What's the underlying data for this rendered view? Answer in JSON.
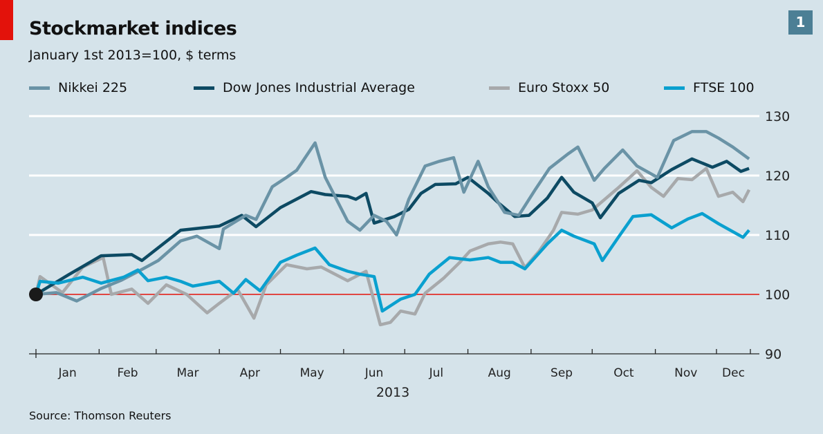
{
  "chart_data": {
    "type": "line",
    "title": "Stockmarket indices",
    "subtitle": "January 1st 2013=100, $ terms",
    "source": "Source: Thomson Reuters",
    "badge": "1",
    "xlabel": "2013",
    "x_ticks": [
      "Jan",
      "Feb",
      "Mar",
      "Apr",
      "May",
      "Jun",
      "Jul",
      "Aug",
      "Sep",
      "Oct",
      "Nov",
      "Dec"
    ],
    "y_ticks": [
      90,
      100,
      110,
      120,
      130
    ],
    "ylim": [
      90,
      130
    ],
    "y_axis_side": "right",
    "grid": true,
    "baseline": 100,
    "baseline_color": "#e3120b",
    "legend_position": "top",
    "series": [
      {
        "name": "Nikkei 225",
        "color": "#6a93a6",
        "points": [
          [
            "2013-01-01",
            100
          ],
          [
            "2013-01-11",
            100.3
          ],
          [
            "2013-01-21",
            98.9
          ],
          [
            "2013-02-02",
            101
          ],
          [
            "2013-02-12",
            102.4
          ],
          [
            "2013-02-22",
            104.2
          ],
          [
            "2013-03-02",
            105.7
          ],
          [
            "2013-03-13",
            109
          ],
          [
            "2013-03-21",
            109.8
          ],
          [
            "2013-04-01",
            107.7
          ],
          [
            "2013-04-03",
            111
          ],
          [
            "2013-04-14",
            113.3
          ],
          [
            "2013-04-19",
            112.6
          ],
          [
            "2013-04-27",
            118.1
          ],
          [
            "2013-05-04",
            119.7
          ],
          [
            "2013-05-09",
            120.9
          ],
          [
            "2013-05-18",
            125.5
          ],
          [
            "2013-05-23",
            119.7
          ],
          [
            "2013-06-03",
            112.3
          ],
          [
            "2013-06-09",
            110.8
          ],
          [
            "2013-06-16",
            113.3
          ],
          [
            "2013-06-22",
            112.3
          ],
          [
            "2013-06-27",
            110
          ],
          [
            "2013-07-03",
            116
          ],
          [
            "2013-07-11",
            121.6
          ],
          [
            "2013-07-18",
            122.4
          ],
          [
            "2013-07-25",
            123
          ],
          [
            "2013-07-30",
            117.2
          ],
          [
            "2013-08-06",
            122.4
          ],
          [
            "2013-08-11",
            118.1
          ],
          [
            "2013-08-19",
            113.8
          ],
          [
            "2013-08-26",
            113.3
          ],
          [
            "2013-09-03",
            117.6
          ],
          [
            "2013-09-10",
            121.2
          ],
          [
            "2013-09-19",
            123.6
          ],
          [
            "2013-09-24",
            124.8
          ],
          [
            "2013-10-02",
            119.2
          ],
          [
            "2013-10-07",
            121.2
          ],
          [
            "2013-10-16",
            124.3
          ],
          [
            "2013-10-23",
            121.6
          ],
          [
            "2013-11-02",
            119.7
          ],
          [
            "2013-11-10",
            125.9
          ],
          [
            "2013-11-19",
            127.4
          ],
          [
            "2013-11-26",
            127.4
          ],
          [
            "2013-12-02",
            126.3
          ],
          [
            "2013-12-09",
            124.8
          ],
          [
            "2013-12-17",
            122.8
          ]
        ]
      },
      {
        "name": "Dow Jones Industrial Average",
        "color": "#0d4a63",
        "points": [
          [
            "2013-01-01",
            100
          ],
          [
            "2013-01-17",
            103.3
          ],
          [
            "2013-02-02",
            106.5
          ],
          [
            "2013-02-17",
            106.7
          ],
          [
            "2013-02-22",
            105.7
          ],
          [
            "2013-03-13",
            110.8
          ],
          [
            "2013-04-01",
            111.5
          ],
          [
            "2013-04-12",
            113.3
          ],
          [
            "2013-04-19",
            111.4
          ],
          [
            "2013-05-01",
            114.6
          ],
          [
            "2013-05-16",
            117.3
          ],
          [
            "2013-05-23",
            116.8
          ],
          [
            "2013-06-03",
            116.5
          ],
          [
            "2013-06-07",
            116
          ],
          [
            "2013-06-12",
            117
          ],
          [
            "2013-06-16",
            112
          ],
          [
            "2013-06-26",
            113.1
          ],
          [
            "2013-07-03",
            114.3
          ],
          [
            "2013-07-09",
            117
          ],
          [
            "2013-07-16",
            118.5
          ],
          [
            "2013-07-26",
            118.6
          ],
          [
            "2013-08-01",
            119.7
          ],
          [
            "2013-08-11",
            117
          ],
          [
            "2013-08-16",
            115.4
          ],
          [
            "2013-08-24",
            113.1
          ],
          [
            "2013-08-31",
            113.3
          ],
          [
            "2013-09-09",
            116.2
          ],
          [
            "2013-09-16",
            119.7
          ],
          [
            "2013-09-22",
            117.2
          ],
          [
            "2013-10-01",
            115.4
          ],
          [
            "2013-10-05",
            112.9
          ],
          [
            "2013-10-14",
            117
          ],
          [
            "2013-10-24",
            119.2
          ],
          [
            "2013-10-30",
            118.8
          ],
          [
            "2013-11-09",
            121
          ],
          [
            "2013-11-19",
            122.8
          ],
          [
            "2013-11-29",
            121.4
          ],
          [
            "2013-12-06",
            122.4
          ],
          [
            "2013-12-13",
            120.7
          ],
          [
            "2013-12-17",
            121.2
          ]
        ]
      },
      {
        "name": "Euro Stoxx 50",
        "color": "#a7a9ab",
        "points": [
          [
            "2013-01-01",
            100
          ],
          [
            "2013-01-03",
            103
          ],
          [
            "2013-01-14",
            100.3
          ],
          [
            "2013-01-24",
            104.6
          ],
          [
            "2013-02-03",
            106.2
          ],
          [
            "2013-02-07",
            100
          ],
          [
            "2013-02-17",
            100.9
          ],
          [
            "2013-02-25",
            98.5
          ],
          [
            "2013-03-06",
            101.6
          ],
          [
            "2013-03-16",
            100
          ],
          [
            "2013-03-26",
            96.9
          ],
          [
            "2013-04-01",
            98.5
          ],
          [
            "2013-04-10",
            100.8
          ],
          [
            "2013-04-18",
            96
          ],
          [
            "2013-04-24",
            101.6
          ],
          [
            "2013-05-04",
            105
          ],
          [
            "2013-05-14",
            104.3
          ],
          [
            "2013-05-21",
            104.6
          ],
          [
            "2013-06-03",
            102.3
          ],
          [
            "2013-06-12",
            103.9
          ],
          [
            "2013-06-19",
            94.9
          ],
          [
            "2013-06-24",
            95.3
          ],
          [
            "2013-06-29",
            97.2
          ],
          [
            "2013-07-06",
            96.7
          ],
          [
            "2013-07-11",
            100.2
          ],
          [
            "2013-07-20",
            102.7
          ],
          [
            "2013-07-28",
            105.4
          ],
          [
            "2013-08-02",
            107.3
          ],
          [
            "2013-08-11",
            108.5
          ],
          [
            "2013-08-17",
            108.8
          ],
          [
            "2013-08-23",
            108.5
          ],
          [
            "2013-08-29",
            104.5
          ],
          [
            "2013-09-05",
            107.3
          ],
          [
            "2013-09-12",
            110.8
          ],
          [
            "2013-09-16",
            113.8
          ],
          [
            "2013-09-24",
            113.5
          ],
          [
            "2013-10-01",
            114.2
          ],
          [
            "2013-10-14",
            118
          ],
          [
            "2013-10-23",
            120.8
          ],
          [
            "2013-10-30",
            118
          ],
          [
            "2013-11-05",
            116.5
          ],
          [
            "2013-11-12",
            119.5
          ],
          [
            "2013-11-19",
            119.3
          ],
          [
            "2013-11-26",
            121.2
          ],
          [
            "2013-12-02",
            116.5
          ],
          [
            "2013-12-09",
            117.2
          ],
          [
            "2013-12-14",
            115.6
          ],
          [
            "2013-12-17",
            117.6
          ]
        ]
      },
      {
        "name": "FTSE 100",
        "color": "#0aa0cf",
        "points": [
          [
            "2013-01-01",
            100
          ],
          [
            "2013-01-03",
            102.2
          ],
          [
            "2013-01-12",
            101.9
          ],
          [
            "2013-01-24",
            102.9
          ],
          [
            "2013-02-02",
            101.9
          ],
          [
            "2013-02-13",
            102.9
          ],
          [
            "2013-02-20",
            104.1
          ],
          [
            "2013-02-25",
            102.3
          ],
          [
            "2013-03-06",
            102.9
          ],
          [
            "2013-03-13",
            102.2
          ],
          [
            "2013-03-19",
            101.4
          ],
          [
            "2013-04-01",
            102.2
          ],
          [
            "2013-04-08",
            100.2
          ],
          [
            "2013-04-14",
            102.5
          ],
          [
            "2013-04-21",
            100.6
          ],
          [
            "2013-05-01",
            105.4
          ],
          [
            "2013-05-09",
            106.6
          ],
          [
            "2013-05-18",
            107.8
          ],
          [
            "2013-05-25",
            105
          ],
          [
            "2013-06-03",
            103.9
          ],
          [
            "2013-06-09",
            103.4
          ],
          [
            "2013-06-16",
            103
          ],
          [
            "2013-06-20",
            97.2
          ],
          [
            "2013-06-29",
            99.2
          ],
          [
            "2013-07-06",
            100
          ],
          [
            "2013-07-13",
            103.4
          ],
          [
            "2013-07-23",
            106.2
          ],
          [
            "2013-08-02",
            105.8
          ],
          [
            "2013-08-11",
            106.2
          ],
          [
            "2013-08-17",
            105.4
          ],
          [
            "2013-08-23",
            105.4
          ],
          [
            "2013-08-29",
            104.3
          ],
          [
            "2013-09-09",
            108.5
          ],
          [
            "2013-09-16",
            110.8
          ],
          [
            "2013-09-22",
            109.8
          ],
          [
            "2013-10-02",
            108.5
          ],
          [
            "2013-10-06",
            105.7
          ],
          [
            "2013-10-14",
            109.7
          ],
          [
            "2013-10-21",
            113.1
          ],
          [
            "2013-10-30",
            113.4
          ],
          [
            "2013-11-09",
            111.2
          ],
          [
            "2013-11-17",
            112.7
          ],
          [
            "2013-11-24",
            113.6
          ],
          [
            "2013-12-02",
            111.9
          ],
          [
            "2013-12-14",
            109.6
          ],
          [
            "2013-12-17",
            110.8
          ]
        ]
      }
    ]
  }
}
